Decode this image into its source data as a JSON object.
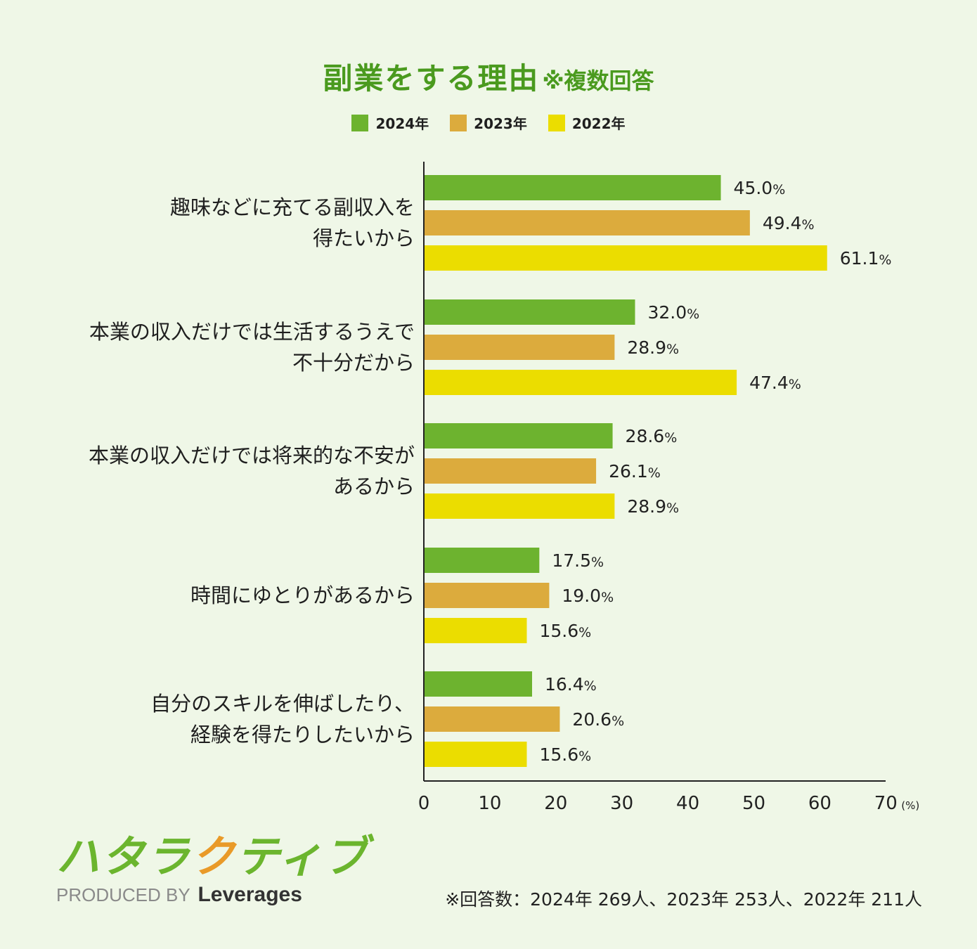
{
  "title": {
    "main": "副業をする理由",
    "sub": "※複数回答"
  },
  "legend": [
    {
      "label": "2024年",
      "color": "#6db32f"
    },
    {
      "label": "2023年",
      "color": "#dcab3d"
    },
    {
      "label": "2022年",
      "color": "#ebdd00"
    }
  ],
  "chart_data": {
    "type": "bar",
    "orientation": "horizontal",
    "categories": [
      [
        "趣味などに充てる副収入を",
        "得たいから"
      ],
      [
        "本業の収入だけでは生活するうえで",
        "不十分だから"
      ],
      [
        "本業の収入だけでは将来的な不安が",
        "あるから"
      ],
      [
        "時間にゆとりがあるから"
      ],
      [
        "自分のスキルを伸ばしたり、",
        "経験を得たりしたいから"
      ]
    ],
    "series": [
      {
        "name": "2024年",
        "color": "#6db32f",
        "values": [
          45.0,
          32.0,
          28.6,
          17.5,
          16.4
        ],
        "labels": [
          "45.0",
          "32.0",
          "28.6",
          "17.5",
          "16.4"
        ]
      },
      {
        "name": "2023年",
        "color": "#dcab3d",
        "values": [
          49.4,
          28.9,
          26.1,
          19.0,
          20.6
        ],
        "labels": [
          "49.4",
          "28.9",
          "26.1",
          "19.0",
          "20.6"
        ]
      },
      {
        "name": "2022年",
        "color": "#ebdd00",
        "values": [
          61.1,
          47.4,
          28.9,
          15.6,
          15.6
        ],
        "labels": [
          "61.1",
          "47.4",
          "28.9",
          "15.6",
          "15.6"
        ]
      }
    ],
    "value_suffix": "%",
    "xlim": [
      0,
      70
    ],
    "xticks": [
      0,
      10,
      20,
      30,
      40,
      50,
      60,
      70
    ],
    "x_unit": "(%)",
    "grid": false
  },
  "logo": {
    "part1": "ハタラ",
    "part2": "ク",
    "part3": "ティブ"
  },
  "produced": {
    "prefix": "PRODUCED BY",
    "brand": "Leverages"
  },
  "footnote": "※回答数：2024年 269人、2023年 253人、2022年 211人"
}
